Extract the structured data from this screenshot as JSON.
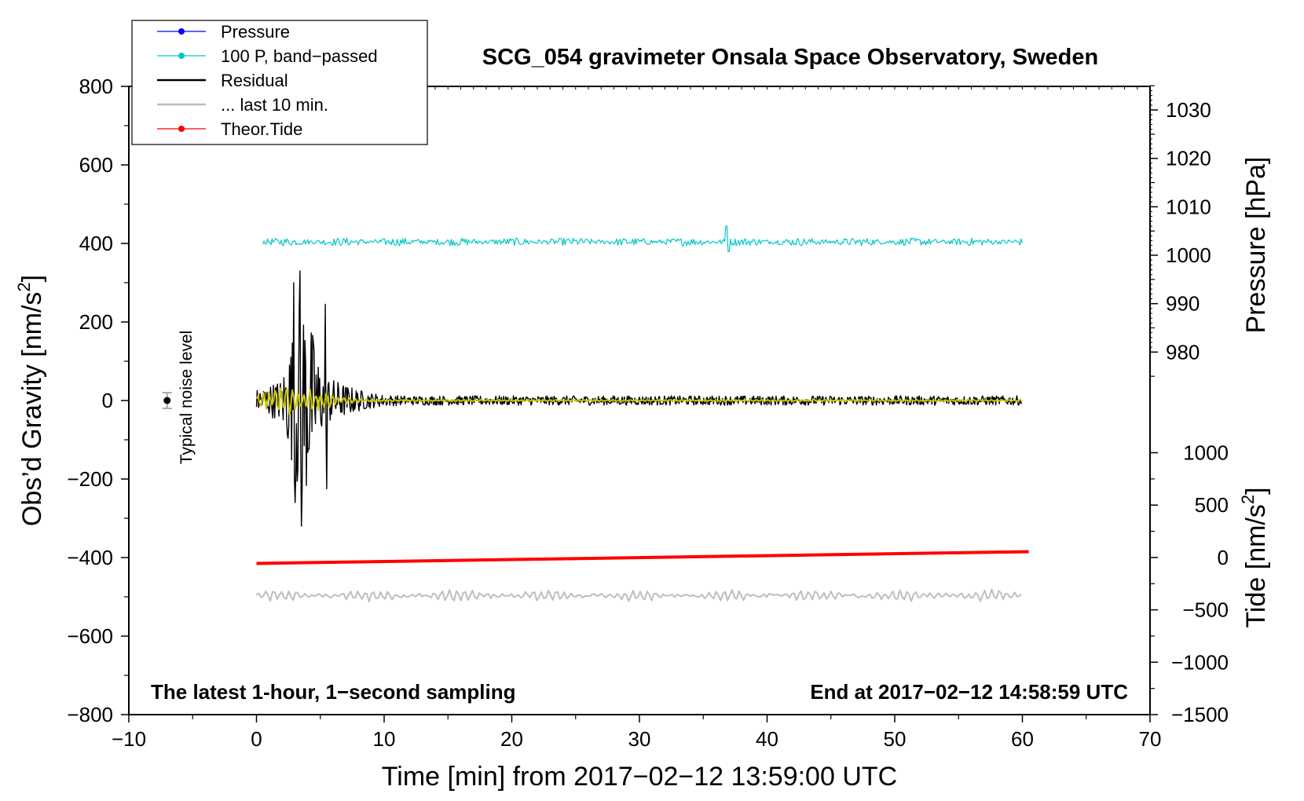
{
  "chart_data": {
    "type": "line",
    "title": "SCG_054 gravimeter Onsala Space Observatory, Sweden",
    "xlabel": "Time [min] from 2017−02−12 13:59:00 UTC",
    "ylabel": "Obs’d Gravity [nm/s²]",
    "ylabel_main": "Obs’d Gravity [nm/s",
    "ylabel_sup": "2",
    "ylabel_close": "]",
    "xlim": [
      -10,
      70
    ],
    "ylim": [
      -800,
      800
    ],
    "x_ticks": [
      -10,
      0,
      10,
      20,
      30,
      40,
      50,
      60,
      70
    ],
    "x_tick_labels": [
      "−10",
      "0",
      "10",
      "20",
      "30",
      "40",
      "50",
      "60",
      "70"
    ],
    "y_ticks": [
      -800,
      -600,
      -400,
      -200,
      0,
      200,
      400,
      600,
      800
    ],
    "y_tick_labels": [
      "−800",
      "−600",
      "−400",
      "−200",
      "0",
      "200",
      "400",
      "600",
      "800"
    ],
    "right_axes": {
      "pressure": {
        "label": "Pressure [hPa]",
        "ticks": [
          980,
          990,
          1000,
          1010,
          1020,
          1030
        ],
        "tick_labels": [
          "980",
          "990",
          "1000",
          "1010",
          "1020",
          "1030"
        ],
        "equiv_gravity": {
          "value_a": 1000,
          "gravity_a": 370,
          "value_b": 1030,
          "gravity_b": 740
        }
      },
      "tide": {
        "label_main": "Tide [nm/s",
        "label_sup": "2",
        "label_close": "]",
        "ticks": [
          -1500,
          -1000,
          -500,
          0,
          500,
          1000
        ],
        "tick_labels": [
          "−1500",
          "−1000",
          "−500",
          "0",
          "500",
          "1000"
        ],
        "equiv_gravity": {
          "value_a": 1000,
          "gravity_a": -133,
          "value_b": -1500,
          "gravity_b": -800
        }
      }
    },
    "annotations": {
      "bottom_left": "The latest 1-hour, 1−second sampling",
      "bottom_right": "End at 2017−02−12 14:58:59 UTC",
      "noise": "Typical noise level"
    },
    "noise_marker": {
      "x": -7,
      "y": 0,
      "err": 20
    },
    "legend": [
      {
        "name": "Pressure",
        "color": "#0000ff",
        "marker": true
      },
      {
        "name": "100 P, band−passed",
        "color": "#00c8c8",
        "marker": true
      },
      {
        "name": "Residual",
        "color": "#000000",
        "marker": false
      },
      {
        "name": "... last 10 min.",
        "color": "#bebebe",
        "marker": false
      },
      {
        "name": "Theor.Tide",
        "color": "#ff0000",
        "marker": true
      }
    ],
    "series": [
      {
        "name": "100 P, band−passed",
        "color": "#00c8c8",
        "x_range": [
          0.5,
          60
        ],
        "baseline": 404,
        "amplitude": 10,
        "linewidth": 1.2
      },
      {
        "name": "Residual",
        "color": "#000000",
        "x_range": [
          0,
          60
        ],
        "baseline": 0,
        "peak_amplitude": 330,
        "background_amplitude": 12,
        "linewidth": 1.4
      },
      {
        "name": "Residual (filtered)",
        "color": "#c8c800",
        "x_range": [
          0,
          60
        ],
        "baseline": 0,
        "amplitude": 15,
        "linewidth": 2
      },
      {
        "name": "... last 10 min.",
        "color": "#bebebe",
        "x_range": [
          0,
          60
        ],
        "baseline": -497,
        "amplitude": 12,
        "linewidth": 2
      },
      {
        "name": "Theor.Tide",
        "color": "#ff0000",
        "x": [
          0,
          60.5
        ],
        "values": [
          -415,
          -385
        ],
        "linewidth": 4
      }
    ]
  }
}
